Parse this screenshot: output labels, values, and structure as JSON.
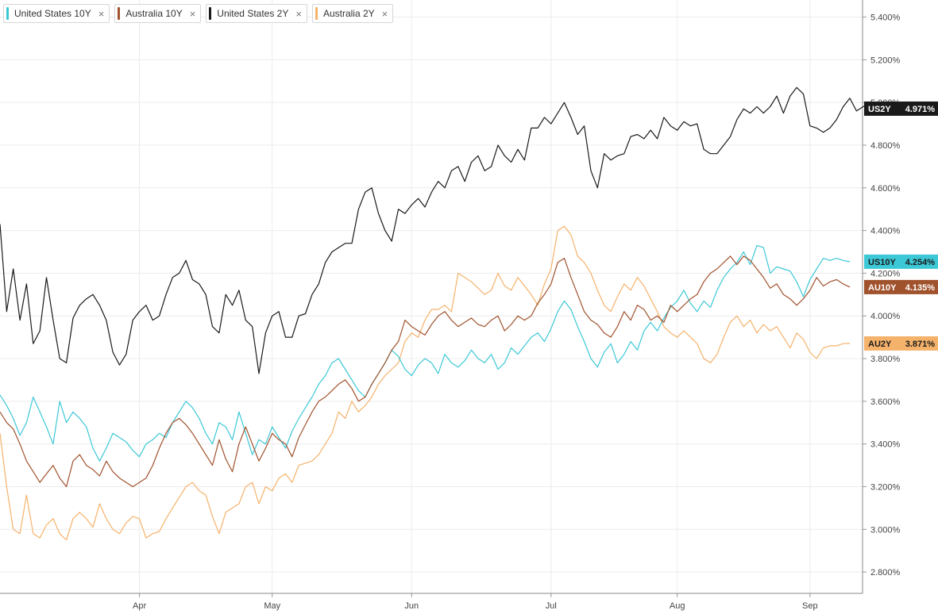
{
  "legend": [
    {
      "label": "United States 10Y",
      "color": "#3cc8d6",
      "close": "×"
    },
    {
      "label": "Australia 10Y",
      "color": "#a0522d",
      "close": "×"
    },
    {
      "label": "United States 2Y",
      "color": "#1a1a1a",
      "close": "×"
    },
    {
      "label": "Australia 2Y",
      "color": "#f5b26b",
      "close": "×"
    }
  ],
  "chart_data": {
    "type": "line",
    "xlabel": "",
    "ylabel": "",
    "ylim": [
      2.7,
      5.48
    ],
    "y_ticks": [
      "2.800%",
      "3.000%",
      "3.200%",
      "3.400%",
      "3.600%",
      "3.800%",
      "4.000%",
      "4.200%",
      "4.400%",
      "4.600%",
      "4.800%",
      "5.000%",
      "5.200%",
      "5.400%"
    ],
    "y_tick_values": [
      2.8,
      3.0,
      3.2,
      3.4,
      3.6,
      3.8,
      4.0,
      4.2,
      4.4,
      4.6,
      4.8,
      5.0,
      5.2,
      5.4
    ],
    "x_tick_labels": [
      "Apr",
      "May",
      "Jun",
      "Jul",
      "Aug",
      "Sep"
    ],
    "x_tick_positions": [
      21,
      41,
      62,
      83,
      102,
      122
    ],
    "x_range": [
      0,
      128
    ],
    "grid": true,
    "legend_position": "top-left",
    "series": [
      {
        "name": "United States 10Y",
        "tag": "US10Y",
        "last_label": "4.254%",
        "last_value": 4.254,
        "color": "#3cc8d6",
        "values": [
          3.63,
          3.58,
          3.52,
          3.44,
          3.5,
          3.62,
          3.55,
          3.48,
          3.4,
          3.6,
          3.5,
          3.55,
          3.52,
          3.48,
          3.38,
          3.32,
          3.38,
          3.45,
          3.43,
          3.41,
          3.37,
          3.34,
          3.4,
          3.42,
          3.45,
          3.43,
          3.5,
          3.55,
          3.6,
          3.57,
          3.52,
          3.45,
          3.4,
          3.5,
          3.48,
          3.42,
          3.55,
          3.45,
          3.35,
          3.42,
          3.4,
          3.48,
          3.43,
          3.38,
          3.46,
          3.52,
          3.57,
          3.62,
          3.68,
          3.72,
          3.78,
          3.8,
          3.75,
          3.7,
          3.65,
          3.62,
          3.68,
          3.73,
          3.78,
          3.84,
          3.81,
          3.75,
          3.72,
          3.77,
          3.8,
          3.78,
          3.73,
          3.82,
          3.78,
          3.76,
          3.79,
          3.84,
          3.8,
          3.78,
          3.82,
          3.75,
          3.78,
          3.85,
          3.82,
          3.86,
          3.9,
          3.92,
          3.88,
          3.94,
          4.02,
          4.07,
          4.03,
          3.95,
          3.88,
          3.8,
          3.76,
          3.83,
          3.87,
          3.78,
          3.82,
          3.88,
          3.84,
          3.93,
          3.97,
          3.93,
          3.99,
          4.04,
          4.07,
          4.12,
          4.06,
          4.02,
          4.07,
          4.04,
          4.12,
          4.18,
          4.22,
          4.25,
          4.3,
          4.24,
          4.33,
          4.32,
          4.2,
          4.23,
          4.22,
          4.21,
          4.16,
          4.09,
          4.17,
          4.22,
          4.27,
          4.26,
          4.27,
          4.26,
          4.254
        ]
      },
      {
        "name": "Australia 10Y",
        "tag": "AU10Y",
        "last_label": "4.135%",
        "last_value": 4.135,
        "color": "#a0522d",
        "values": [
          3.55,
          3.5,
          3.47,
          3.4,
          3.32,
          3.27,
          3.22,
          3.26,
          3.3,
          3.24,
          3.2,
          3.32,
          3.35,
          3.3,
          3.28,
          3.25,
          3.32,
          3.27,
          3.24,
          3.22,
          3.2,
          3.22,
          3.24,
          3.3,
          3.38,
          3.45,
          3.5,
          3.52,
          3.49,
          3.45,
          3.4,
          3.35,
          3.3,
          3.42,
          3.33,
          3.27,
          3.4,
          3.48,
          3.4,
          3.32,
          3.38,
          3.45,
          3.42,
          3.4,
          3.34,
          3.43,
          3.49,
          3.55,
          3.6,
          3.62,
          3.65,
          3.68,
          3.7,
          3.66,
          3.6,
          3.62,
          3.68,
          3.73,
          3.78,
          3.84,
          3.88,
          3.98,
          3.95,
          3.93,
          3.91,
          3.96,
          4.0,
          4.02,
          3.98,
          3.95,
          3.97,
          3.99,
          3.96,
          3.95,
          3.98,
          4.0,
          3.93,
          3.96,
          4.0,
          3.98,
          4.0,
          4.06,
          4.1,
          4.15,
          4.25,
          4.27,
          4.18,
          4.1,
          4.02,
          3.98,
          3.96,
          3.92,
          3.9,
          3.95,
          4.02,
          3.98,
          4.05,
          4.03,
          3.98,
          4.0,
          3.97,
          4.05,
          4.02,
          4.05,
          4.08,
          4.1,
          4.16,
          4.2,
          4.22,
          4.25,
          4.28,
          4.24,
          4.28,
          4.26,
          4.22,
          4.18,
          4.13,
          4.15,
          4.1,
          4.08,
          4.05,
          4.08,
          4.12,
          4.18,
          4.14,
          4.16,
          4.17,
          4.15,
          4.135
        ]
      },
      {
        "name": "United States 2Y",
        "tag": "US2Y",
        "last_label": "4.971%",
        "last_value": 4.971,
        "color": "#1a1a1a",
        "values": [
          4.43,
          4.02,
          4.22,
          3.98,
          4.15,
          3.87,
          3.93,
          4.18,
          3.98,
          3.8,
          3.78,
          3.99,
          4.05,
          4.08,
          4.1,
          4.05,
          3.98,
          3.83,
          3.77,
          3.82,
          3.98,
          4.02,
          4.05,
          3.98,
          4.0,
          4.1,
          4.18,
          4.2,
          4.26,
          4.17,
          4.15,
          4.1,
          3.95,
          3.92,
          4.1,
          4.05,
          4.12,
          3.98,
          3.95,
          3.73,
          3.92,
          4.0,
          4.02,
          3.9,
          3.9,
          4.0,
          4.01,
          4.1,
          4.15,
          4.25,
          4.3,
          4.32,
          4.34,
          4.34,
          4.5,
          4.58,
          4.6,
          4.48,
          4.4,
          4.35,
          4.5,
          4.48,
          4.52,
          4.55,
          4.51,
          4.58,
          4.63,
          4.6,
          4.68,
          4.7,
          4.63,
          4.72,
          4.75,
          4.68,
          4.7,
          4.8,
          4.75,
          4.72,
          4.78,
          4.73,
          4.88,
          4.88,
          4.93,
          4.9,
          4.95,
          5.0,
          4.93,
          4.85,
          4.89,
          4.68,
          4.6,
          4.76,
          4.73,
          4.75,
          4.76,
          4.84,
          4.85,
          4.83,
          4.87,
          4.83,
          4.93,
          4.89,
          4.87,
          4.91,
          4.89,
          4.9,
          4.78,
          4.76,
          4.76,
          4.8,
          4.84,
          4.92,
          4.97,
          4.95,
          4.98,
          4.95,
          4.98,
          5.03,
          4.95,
          5.03,
          5.07,
          5.04,
          4.89,
          4.88,
          4.86,
          4.88,
          4.92,
          4.98,
          5.02,
          4.96,
          4.98,
          5.0,
          4.971
        ]
      },
      {
        "name": "Australia 2Y",
        "tag": "AU2Y",
        "last_label": "3.871%",
        "last_value": 3.871,
        "color": "#f5b26b",
        "values": [
          3.45,
          3.2,
          3.0,
          2.98,
          3.16,
          2.98,
          2.96,
          3.02,
          3.05,
          2.98,
          2.95,
          3.05,
          3.08,
          3.05,
          3.01,
          3.12,
          3.05,
          3.0,
          2.98,
          3.03,
          3.06,
          3.05,
          2.96,
          2.98,
          2.99,
          3.05,
          3.1,
          3.15,
          3.2,
          3.22,
          3.18,
          3.16,
          3.06,
          2.98,
          3.08,
          3.1,
          3.12,
          3.2,
          3.22,
          3.12,
          3.2,
          3.18,
          3.24,
          3.26,
          3.22,
          3.3,
          3.31,
          3.32,
          3.35,
          3.4,
          3.45,
          3.55,
          3.52,
          3.6,
          3.55,
          3.58,
          3.62,
          3.68,
          3.72,
          3.75,
          3.78,
          3.88,
          3.92,
          3.9,
          3.98,
          4.03,
          4.03,
          4.05,
          4.02,
          4.2,
          4.18,
          4.16,
          4.13,
          4.1,
          4.12,
          4.2,
          4.14,
          4.12,
          4.18,
          4.14,
          4.1,
          4.05,
          4.15,
          4.22,
          4.4,
          4.42,
          4.38,
          4.28,
          4.25,
          4.2,
          4.12,
          4.05,
          4.02,
          4.09,
          4.15,
          4.12,
          4.18,
          4.14,
          4.08,
          4.02,
          3.95,
          3.92,
          3.9,
          3.93,
          3.9,
          3.87,
          3.8,
          3.78,
          3.82,
          3.9,
          3.97,
          4.0,
          3.95,
          3.98,
          3.92,
          3.96,
          3.93,
          3.95,
          3.9,
          3.85,
          3.92,
          3.89,
          3.83,
          3.8,
          3.85,
          3.86,
          3.86,
          3.87,
          3.871
        ]
      }
    ]
  }
}
